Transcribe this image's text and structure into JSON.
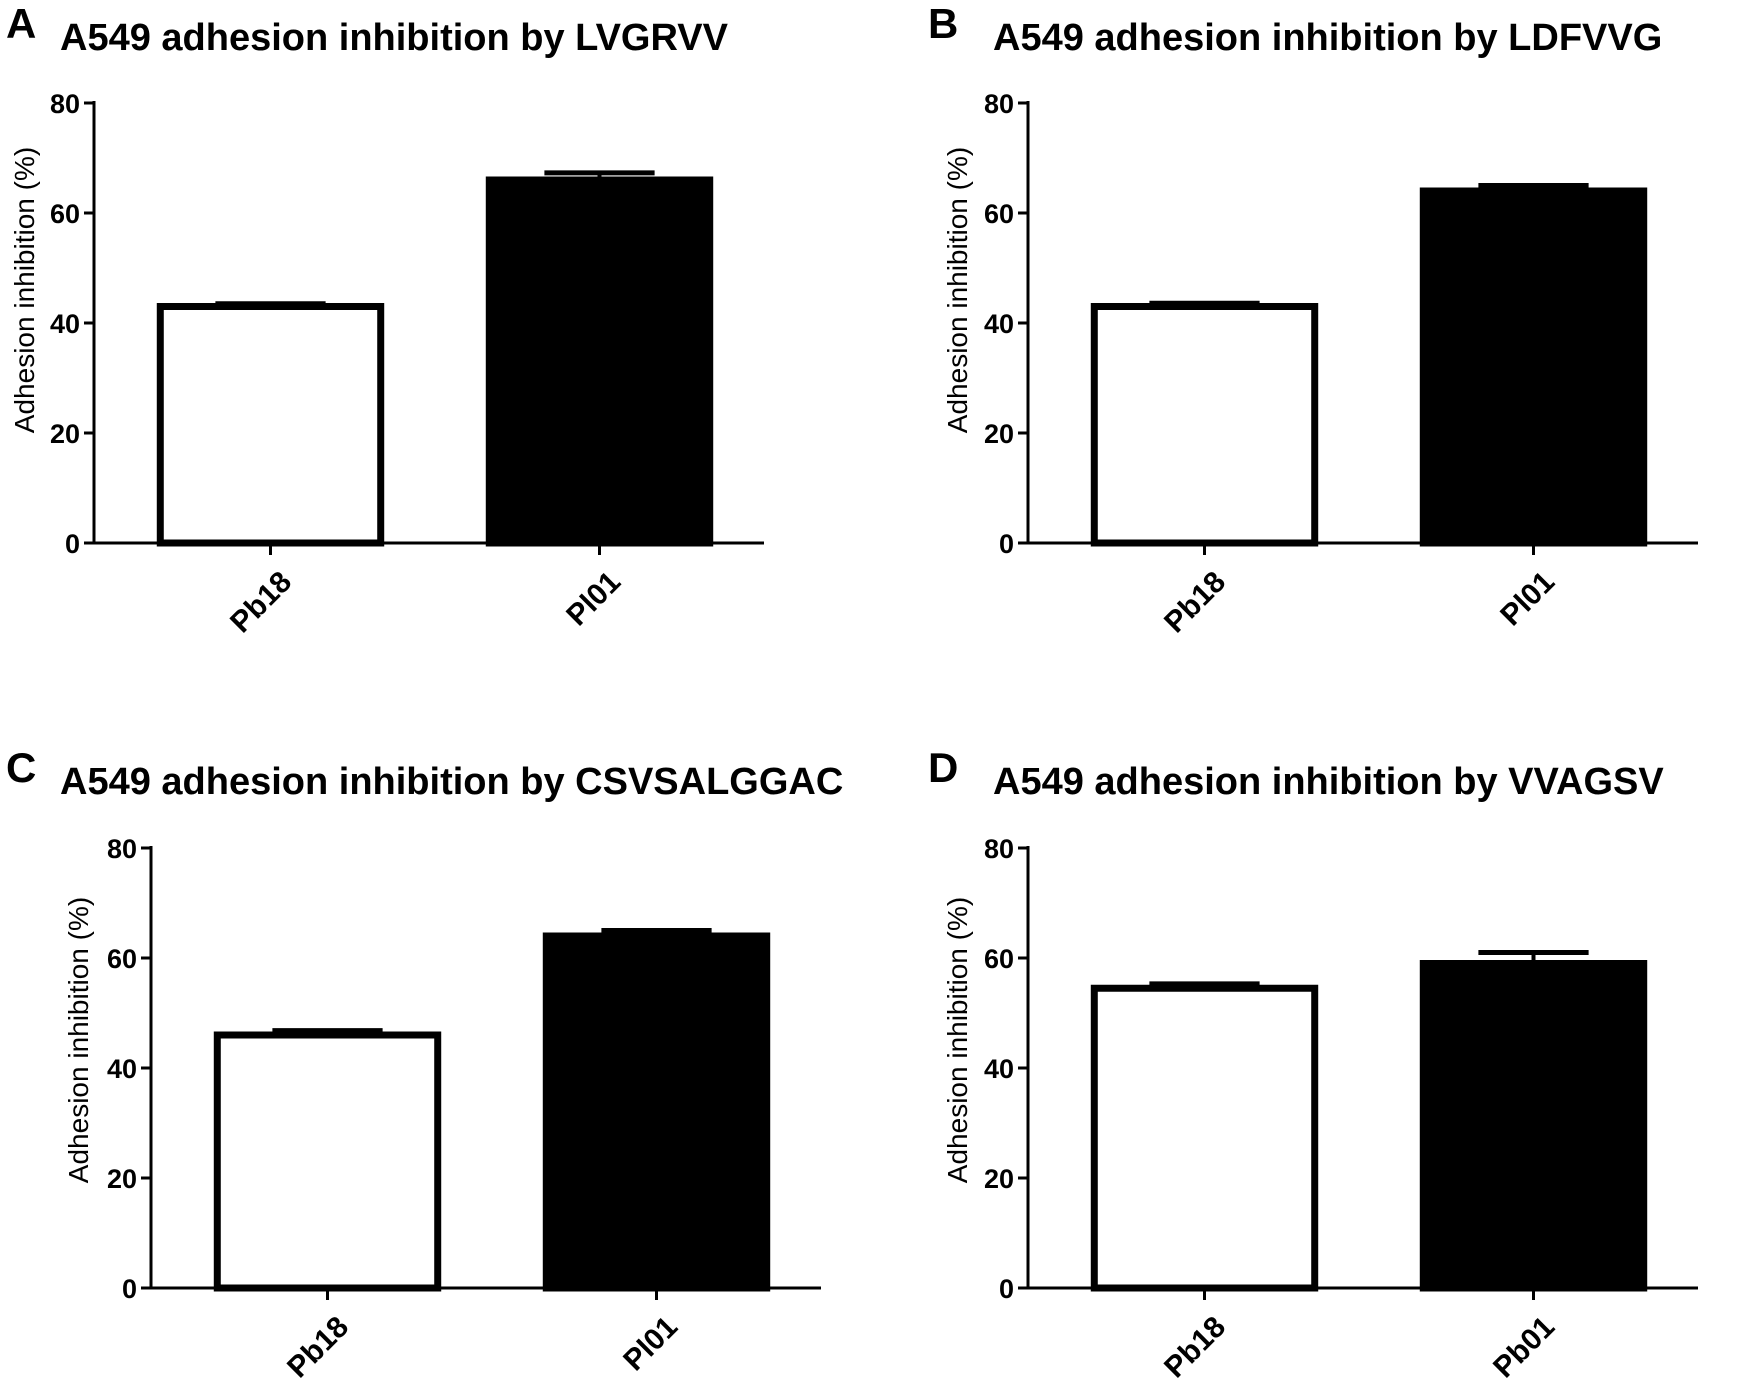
{
  "chart_data": [
    {
      "panel": "A",
      "type": "bar",
      "title": "A549 adhesion inhibition by LVGRVV",
      "ylabel": "Adhesion inhibition (%)",
      "xlabel": "",
      "ylim": [
        0,
        80
      ],
      "yticks": [
        "0",
        "20",
        "40",
        "60",
        "80"
      ],
      "categories": [
        "Pb18",
        "Pl01"
      ],
      "values": [
        43,
        66
      ],
      "errors": [
        0.5,
        1.3
      ],
      "fills": [
        "#ffffff",
        "#000000"
      ]
    },
    {
      "panel": "B",
      "type": "bar",
      "title": "A549 adhesion inhibition by LDFVVG",
      "ylabel": "Adhesion inhibition (%)",
      "xlabel": "",
      "ylim": [
        0,
        80
      ],
      "yticks": [
        "0",
        "20",
        "40",
        "60",
        "80"
      ],
      "categories": [
        "Pb18",
        "Pl01"
      ],
      "values": [
        43,
        64
      ],
      "errors": [
        0.6,
        1.0
      ],
      "fills": [
        "#ffffff",
        "#000000"
      ]
    },
    {
      "panel": "C",
      "type": "bar",
      "title": "A549 adhesion inhibition by CSVSALGGAC",
      "ylabel": "Adhesion inhibition (%)",
      "xlabel": "",
      "ylim": [
        0,
        80
      ],
      "yticks": [
        "0",
        "20",
        "40",
        "60",
        "80"
      ],
      "categories": [
        "Pb18",
        "Pl01"
      ],
      "values": [
        46,
        64
      ],
      "errors": [
        0.8,
        1.0
      ],
      "fills": [
        "#ffffff",
        "#000000"
      ]
    },
    {
      "panel": "D",
      "type": "bar",
      "title": "A549 adhesion inhibition by VVAGSV",
      "ylabel": "Adhesion inhibition (%)",
      "xlabel": "",
      "ylim": [
        0,
        80
      ],
      "yticks": [
        "0",
        "20",
        "40",
        "60",
        "80"
      ],
      "categories": [
        "Pb18",
        "Pb01"
      ],
      "values": [
        54.5,
        59
      ],
      "errors": [
        0.8,
        2.0
      ],
      "fills": [
        "#ffffff",
        "#000000"
      ]
    }
  ]
}
